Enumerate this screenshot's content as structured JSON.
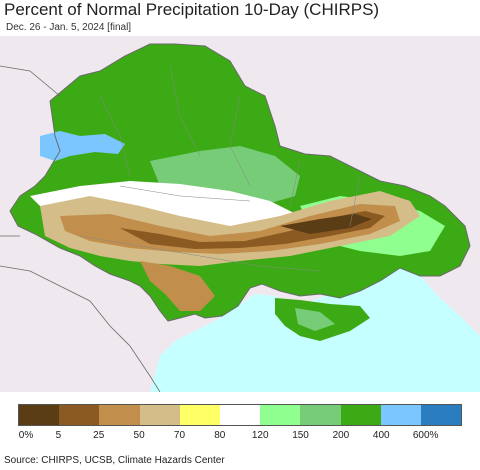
{
  "title": "Percent of Normal Precipitation 10-Day (CHIRPS)",
  "subtitle": "Dec. 26 - Jan. 5, 2024 [final]",
  "source": "Source: CHIRPS, UCSB, Climate Hazards Center",
  "colors": {
    "background_land": "#efe9ef",
    "sea": "#c6ffff",
    "border": "#6a6a6a"
  },
  "legend": {
    "colors": [
      "#5a3d15",
      "#8b5a23",
      "#c18e4c",
      "#d4bd88",
      "#ffff66",
      "#ffffff",
      "#8fff8f",
      "#77cc77",
      "#3caa14",
      "#7cc6ff",
      "#2a7ec0"
    ],
    "labels": [
      "0%",
      "5",
      "25",
      "50",
      "70",
      "80",
      "120",
      "150",
      "200",
      "400",
      "600%"
    ]
  }
}
